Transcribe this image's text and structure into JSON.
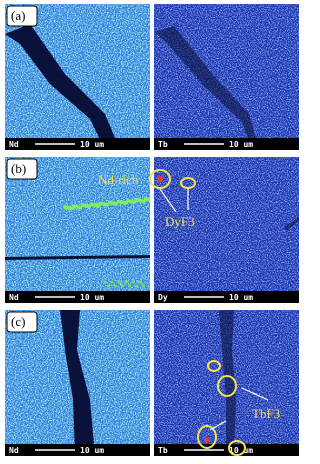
{
  "rows": [
    {
      "label": "(a)",
      "panels": [
        {
          "element": "Nd",
          "scale": "10 um"
        },
        {
          "element": "Tb",
          "scale": "10 um"
        }
      ]
    },
    {
      "label": "(b)",
      "panels": [
        {
          "element": "Nd",
          "scale": "10 um"
        },
        {
          "element": "Dy",
          "scale": "10 um"
        }
      ]
    },
    {
      "label": "(c)",
      "panels": [
        {
          "element": "Nd",
          "scale": "10 um"
        },
        {
          "element": "Tb",
          "scale": "10 um"
        }
      ]
    }
  ],
  "annotations": {
    "nd_rich": "Nd-rich",
    "dyf3": "DyF3",
    "tbf3": "TbF3"
  }
}
